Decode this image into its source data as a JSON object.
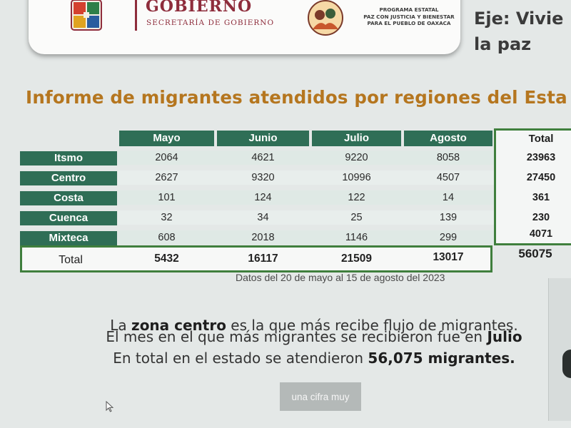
{
  "header": {
    "gov_title": "GOBIERNO",
    "gov_subtitle": "SECRETARÍA DE GOBIERNO",
    "program_lines": [
      "PROGRAMA ESTATAL",
      "PAZ CON JUSTICIA Y BIENESTAR",
      "PARA EL PUEBLO DE OAXACA"
    ],
    "eje_lines": [
      "Eje: Vivie",
      "la paz"
    ],
    "gov_logo_icon": "state-shield-icon",
    "program_logo_icon": "program-seal-icon",
    "brand_color": "#8e2d3c"
  },
  "report": {
    "title": "Informe de migrantes atendidos por regiones del Esta",
    "title_color": "#b5761f"
  },
  "table": {
    "months": [
      "Mayo",
      "Junio",
      "Julio",
      "Agosto"
    ],
    "total_header": "Total",
    "header_color": "#2f6e56",
    "rows": [
      {
        "region": "Itsmo",
        "values": [
          "2064",
          "4621",
          "9220",
          "8058"
        ],
        "total": "23963"
      },
      {
        "region": "Centro",
        "values": [
          "2627",
          "9320",
          "10996",
          "4507"
        ],
        "total": "27450"
      },
      {
        "region": "Costa",
        "values": [
          "101",
          "124",
          "122",
          "14"
        ],
        "total": "361"
      },
      {
        "region": "Cuenca",
        "values": [
          "32",
          "34",
          "25",
          "139"
        ],
        "total": "230"
      },
      {
        "region": "Mixteca",
        "values": [
          "608",
          "2018",
          "1146",
          "299"
        ],
        "total": "4071"
      }
    ],
    "totals": {
      "label": "Total",
      "values": [
        "5432",
        "16117",
        "21509",
        "13017"
      ],
      "grand_total": "56075"
    },
    "source_note": "Datos del 20 de mayo al 15 de agosto del 2023"
  },
  "summary": {
    "line1": {
      "pre": "La ",
      "bold": "zona centro",
      "post": " es la que más recibe flujo de migrantes."
    },
    "line2": {
      "pre": "El mes en el que más migrantes se recibieron fue en ",
      "bold": "Julio",
      "post": ""
    },
    "line3": {
      "pre": "En total en el estado se atendieron ",
      "bold": "56,075 migrantes.",
      "post": ""
    }
  },
  "button": {
    "label": "una cifra muy"
  },
  "cursor_icon": "mouse-pointer-icon"
}
